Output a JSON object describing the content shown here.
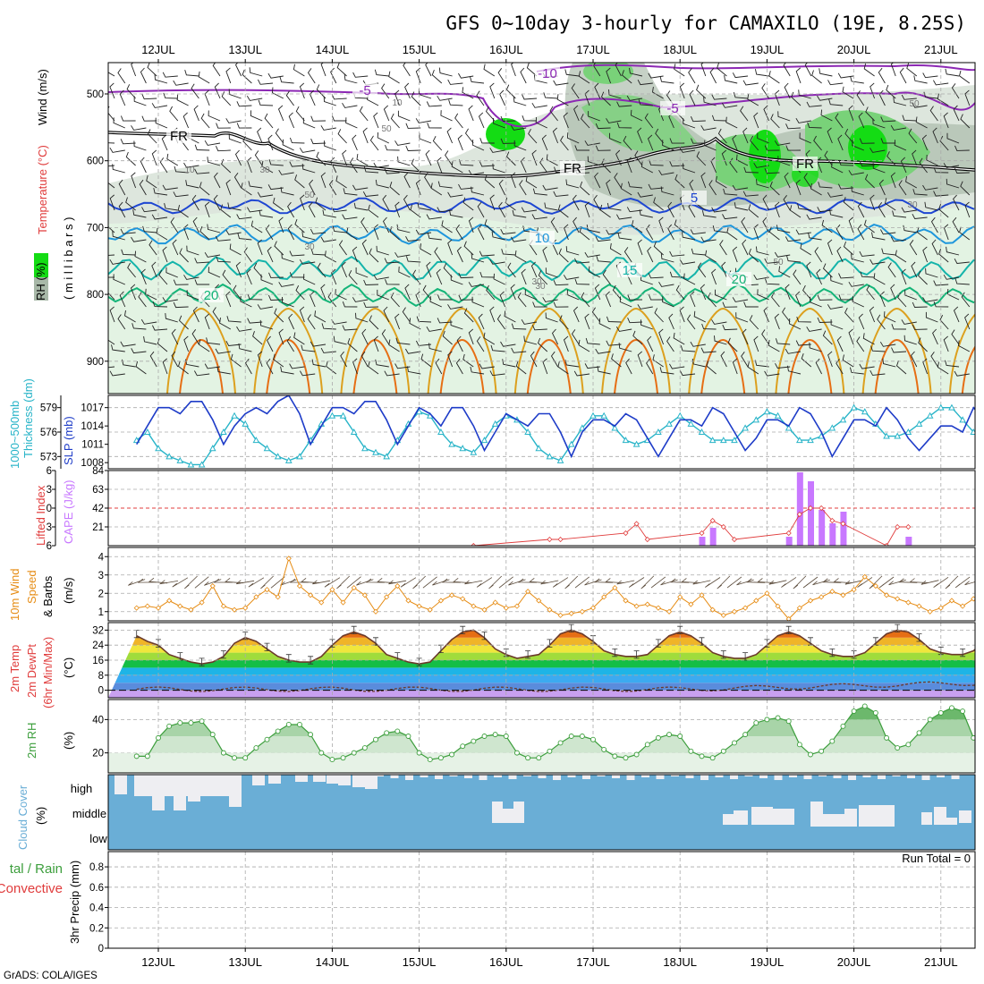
{
  "title": "GFS 0~10day 3-hourly for CAMAXILO (19E, 8.25S)",
  "credit": "GrADS: COLA/IGES",
  "dates": [
    "12JUL",
    "13JUL",
    "14JUL",
    "15JUL",
    "16JUL",
    "17JUL",
    "18JUL",
    "19JUL",
    "20JUL",
    "21JUL"
  ],
  "colors": {
    "rh_dark": "#14dc14",
    "rh_mid": "#79d279",
    "rh_light": "#e3f3e3",
    "dry_light": "#dde6dd",
    "dry_mid": "#a8b8a8",
    "temp_purple": "#8c28b4",
    "temp_blue": "#1e46d2",
    "temp_sky": "#1e96dc",
    "temp_teal": "#14b4aa",
    "temp_green": "#14b478",
    "temp_orange": "#dca01e",
    "temp_dorange": "#e66e14",
    "temp_red": "#d21478",
    "slp": "#1e3cc8",
    "thickness": "#28b4c8",
    "cape": "#c878ff",
    "li": "#e03c3c",
    "wind": "#e68c14",
    "cloud": "#6aaed6",
    "cloud_gap": "#eeeef2",
    "temp_curve": "#6b3a2a",
    "rh2m": "#3c9e3c"
  },
  "panels": {
    "upper": {
      "ylabels": {
        "rh": "RH (%)",
        "temp": "Temperature (°C)",
        "wind": "Wind (m/s)",
        "mb": "( m i l l i b a r s )"
      },
      "yticks": [
        "500",
        "600",
        "700",
        "800",
        "900"
      ],
      "contour_labels": [
        {
          "text": "-10",
          "color": "temp_purple"
        },
        {
          "text": "-5",
          "color": "temp_purple"
        },
        {
          "text": "-5",
          "color": "temp_purple"
        },
        {
          "text": "FR",
          "color": "black"
        },
        {
          "text": "FR",
          "color": "black"
        },
        {
          "text": "FR",
          "color": "black"
        },
        {
          "text": "5",
          "color": "temp_blue"
        },
        {
          "text": "10",
          "color": "temp_sky"
        },
        {
          "text": "15",
          "color": "temp_teal"
        },
        {
          "text": "20",
          "color": "temp_green"
        },
        {
          "text": "20",
          "color": "temp_green"
        }
      ],
      "rh_labels": [
        "10",
        "50",
        "10",
        "30",
        "50",
        "30",
        "30",
        "50",
        "30",
        "50",
        "30"
      ]
    },
    "thickness_slp": {
      "ylabel_thick": "1000~500mb Thickness (dm)",
      "ylabel_slp": "SLP (mb)",
      "thick_ticks": [
        "579",
        "576",
        "573"
      ],
      "slp_ticks": [
        "1017",
        "1014",
        "1011",
        "1008"
      ]
    },
    "cape_li": {
      "ylabel_li": "Lifted Index",
      "ylabel_cape": "CAPE (J/kg)",
      "li_ticks": [
        "6",
        "3",
        "0",
        "3",
        "6"
      ],
      "cape_ticks": [
        "84",
        "63",
        "42",
        "21"
      ]
    },
    "wind10m": {
      "ylabel1": "10m Wind",
      "ylabel2": "Speed",
      "ylabel3": "& Barbs",
      "unit": "(m/s)",
      "yticks": [
        "4",
        "3",
        "2",
        "1"
      ]
    },
    "temp2m": {
      "ylabel1": "2m Temp",
      "ylabel2": "2m DewPt",
      "ylabel3": "(6hr Min/Max)",
      "unit": "(°C)",
      "yticks": [
        "32",
        "24",
        "16",
        "8",
        "0"
      ]
    },
    "rh2m": {
      "ylabel": "2m RH",
      "unit": "(%)",
      "yticks": [
        "40",
        "20"
      ]
    },
    "cloud": {
      "ylabel": "Cloud Cover",
      "unit": "(%)",
      "levels": [
        "high",
        "middle",
        "low"
      ]
    },
    "precip": {
      "ylabel_total": "tal / Rain",
      "ylabel_conv": "Convective",
      "ylabel_main": "3hr Precip (mm)",
      "run_total": "Run Total = 0",
      "yticks": [
        "0.8",
        "0.6",
        "0.4",
        "0.2",
        "0"
      ]
    }
  },
  "chart_data": [
    {
      "type": "line",
      "title": "SLP (mb)",
      "x_start": "11JUL 18Z",
      "x_step_hours": 3,
      "ylim": [
        1007,
        1019
      ],
      "values": [
        1011,
        1014,
        1017,
        1017,
        1016,
        1018,
        1018,
        1015,
        1011,
        1014,
        1016,
        1017,
        1016,
        1018,
        1019,
        1016,
        1011,
        1014,
        1017,
        1017,
        1016,
        1018,
        1018,
        1015,
        1011,
        1014,
        1017,
        1016,
        1014,
        1017,
        1017,
        1014,
        1010,
        1013,
        1016,
        1015,
        1014,
        1016,
        1016,
        1013,
        1009,
        1013,
        1015,
        1015,
        1014,
        1016,
        1015,
        1012,
        1009,
        1012,
        1015,
        1015,
        1014,
        1017,
        1016,
        1013,
        1010,
        1012,
        1015,
        1015,
        1014,
        1017,
        1016,
        1013,
        1009,
        1012,
        1015,
        1015,
        1014,
        1017,
        1015,
        1012,
        1010,
        1012,
        1014,
        1014,
        1013,
        1017,
        1015,
        1012,
        1008,
        1011,
        1014,
        1015
      ]
    },
    {
      "type": "line",
      "title": "1000~500mb Thickness (dm)",
      "x_start": "11JUL 18Z",
      "x_step_hours": 3,
      "ylim": [
        571.5,
        580.5
      ],
      "values": [
        575,
        576,
        574,
        573,
        572.5,
        572,
        572,
        574,
        576,
        578,
        577,
        575,
        574,
        573,
        572.5,
        573,
        575,
        577,
        578,
        578,
        576,
        574,
        573.5,
        573,
        575,
        577,
        578.5,
        578,
        576,
        574.5,
        574,
        573.5,
        575,
        577,
        578,
        577.5,
        576,
        574,
        573,
        572.5,
        574.5,
        576.5,
        578,
        578,
        576.5,
        575,
        574.5,
        575,
        576,
        577,
        578,
        577,
        576,
        575,
        575,
        575,
        576.5,
        577.5,
        578.5,
        578,
        576.5,
        575,
        575,
        575.5,
        576.5,
        577.5,
        579,
        578.5,
        577,
        575.5,
        575.5,
        576,
        577,
        578,
        579,
        579,
        577.5,
        576,
        575,
        576,
        577.5,
        579,
        580,
        579,
        577,
        575.5,
        575,
        573.5
      ]
    },
    {
      "type": "bar",
      "title": "CAPE (J/kg)",
      "x": [
        "18JUL 06Z",
        "18JUL 09Z",
        "19JUL 06Z",
        "19JUL 09Z",
        "19JUL 12Z",
        "19JUL 15Z",
        "19JUL 18Z",
        "19JUL 21Z",
        "20JUL 15Z"
      ],
      "values": [
        10,
        20,
        10,
        82,
        72,
        40,
        25,
        38,
        10
      ],
      "ylim": [
        0,
        84
      ]
    },
    {
      "type": "line",
      "title": "Lifted Index",
      "x": [
        "15JUL 15Z",
        "16JUL 12Z",
        "16JUL 15Z",
        "17JUL 09Z",
        "17JUL 12Z",
        "17JUL 15Z",
        "18JUL 06Z",
        "18JUL 09Z",
        "18JUL 12Z",
        "18JUL 15Z",
        "19JUL 06Z",
        "19JUL 09Z",
        "19JUL 12Z",
        "19JUL 15Z",
        "19JUL 18Z",
        "19JUL 21Z",
        "20JUL 09Z",
        "20JUL 12Z",
        "20JUL 15Z"
      ],
      "values": [
        6,
        5,
        5,
        4,
        2.5,
        5,
        4,
        2,
        3,
        5,
        4,
        1,
        0,
        0,
        2,
        2.5,
        6,
        3,
        3
      ],
      "ylim": [
        -6,
        6
      ]
    },
    {
      "type": "line",
      "title": "10m Wind Speed (m/s)",
      "x_start": "11JUL 18Z",
      "x_step_hours": 3,
      "ylim": [
        0.5,
        4.5
      ],
      "values": [
        1.2,
        1.3,
        1.2,
        1.6,
        1.3,
        1.1,
        1.5,
        2.4,
        1.3,
        1.1,
        1.2,
        1.8,
        2.2,
        1.8,
        3.9,
        2.4,
        1.9,
        1.5,
        2.2,
        1.5,
        2.3,
        1.9,
        1.0,
        1.8,
        2.4,
        1.6,
        1.3,
        1.1,
        1.6,
        1.9,
        1.7,
        1.3,
        1.1,
        1.5,
        1.2,
        1.3,
        2.1,
        1.6,
        1.1,
        0.8,
        0.9,
        1.0,
        1.2,
        1.8,
        2.3,
        1.6,
        1.3,
        1.4,
        1.2,
        1.0,
        1.8,
        1.4,
        1.9,
        1.1,
        0.8,
        1.0,
        1.2,
        1.6,
        2.0,
        1.3,
        0.6,
        1.2,
        1.6,
        1.8,
        2.1,
        1.9,
        2.2,
        2.9,
        2.4,
        1.9,
        1.7,
        1.5,
        1.3,
        1.0,
        1.2,
        1.6,
        1.3,
        1.7,
        0.8,
        4.2,
        3.9,
        3.8,
        2.1,
        1.9,
        1.7,
        1.5,
        1.2
      ]
    },
    {
      "type": "area",
      "title": "2m Temp (°C)",
      "x_start": "11JUL 18Z",
      "x_step_hours": 3,
      "ylim": [
        -4,
        36
      ],
      "values": [
        29,
        26,
        24,
        19,
        17,
        15,
        14,
        15,
        18,
        25,
        28,
        26,
        22,
        18,
        16,
        15,
        15,
        18,
        24,
        29,
        31,
        29,
        25,
        19,
        17,
        15,
        14,
        15,
        21,
        27,
        31,
        32,
        28,
        22,
        19,
        17,
        18,
        19,
        24,
        30,
        32,
        30,
        26,
        21,
        19,
        18,
        18,
        19,
        24,
        29,
        31,
        29,
        25,
        20,
        18,
        17,
        17,
        19,
        24,
        29,
        31,
        29,
        25,
        21,
        19,
        18,
        18,
        20,
        25,
        30,
        32,
        31,
        27,
        22,
        20,
        19,
        19,
        21,
        26,
        31,
        33,
        31,
        27,
        22,
        21,
        20,
        19,
        19
      ]
    },
    {
      "type": "area",
      "title": "2m RH (%)",
      "x_start": "11JUL 18Z",
      "x_step_hours": 3,
      "ylim": [
        8,
        52
      ],
      "values": [
        18,
        18,
        29,
        36,
        38,
        38,
        39,
        31,
        20,
        17,
        17,
        23,
        28,
        33,
        37,
        37,
        31,
        20,
        16,
        17,
        20,
        23,
        28,
        32,
        33,
        30,
        20,
        16,
        17,
        19,
        24,
        27,
        30,
        31,
        30,
        20,
        17,
        17,
        21,
        26,
        30,
        30,
        28,
        22,
        18,
        17,
        19,
        25,
        29,
        31,
        30,
        21,
        18,
        17,
        21,
        26,
        31,
        38,
        40,
        41,
        39,
        25,
        19,
        21,
        27,
        36,
        45,
        48,
        44,
        29,
        23,
        25,
        32,
        40,
        44,
        47,
        45,
        29,
        20,
        18,
        25,
        35,
        41,
        45,
        48,
        38
      ]
    }
  ]
}
